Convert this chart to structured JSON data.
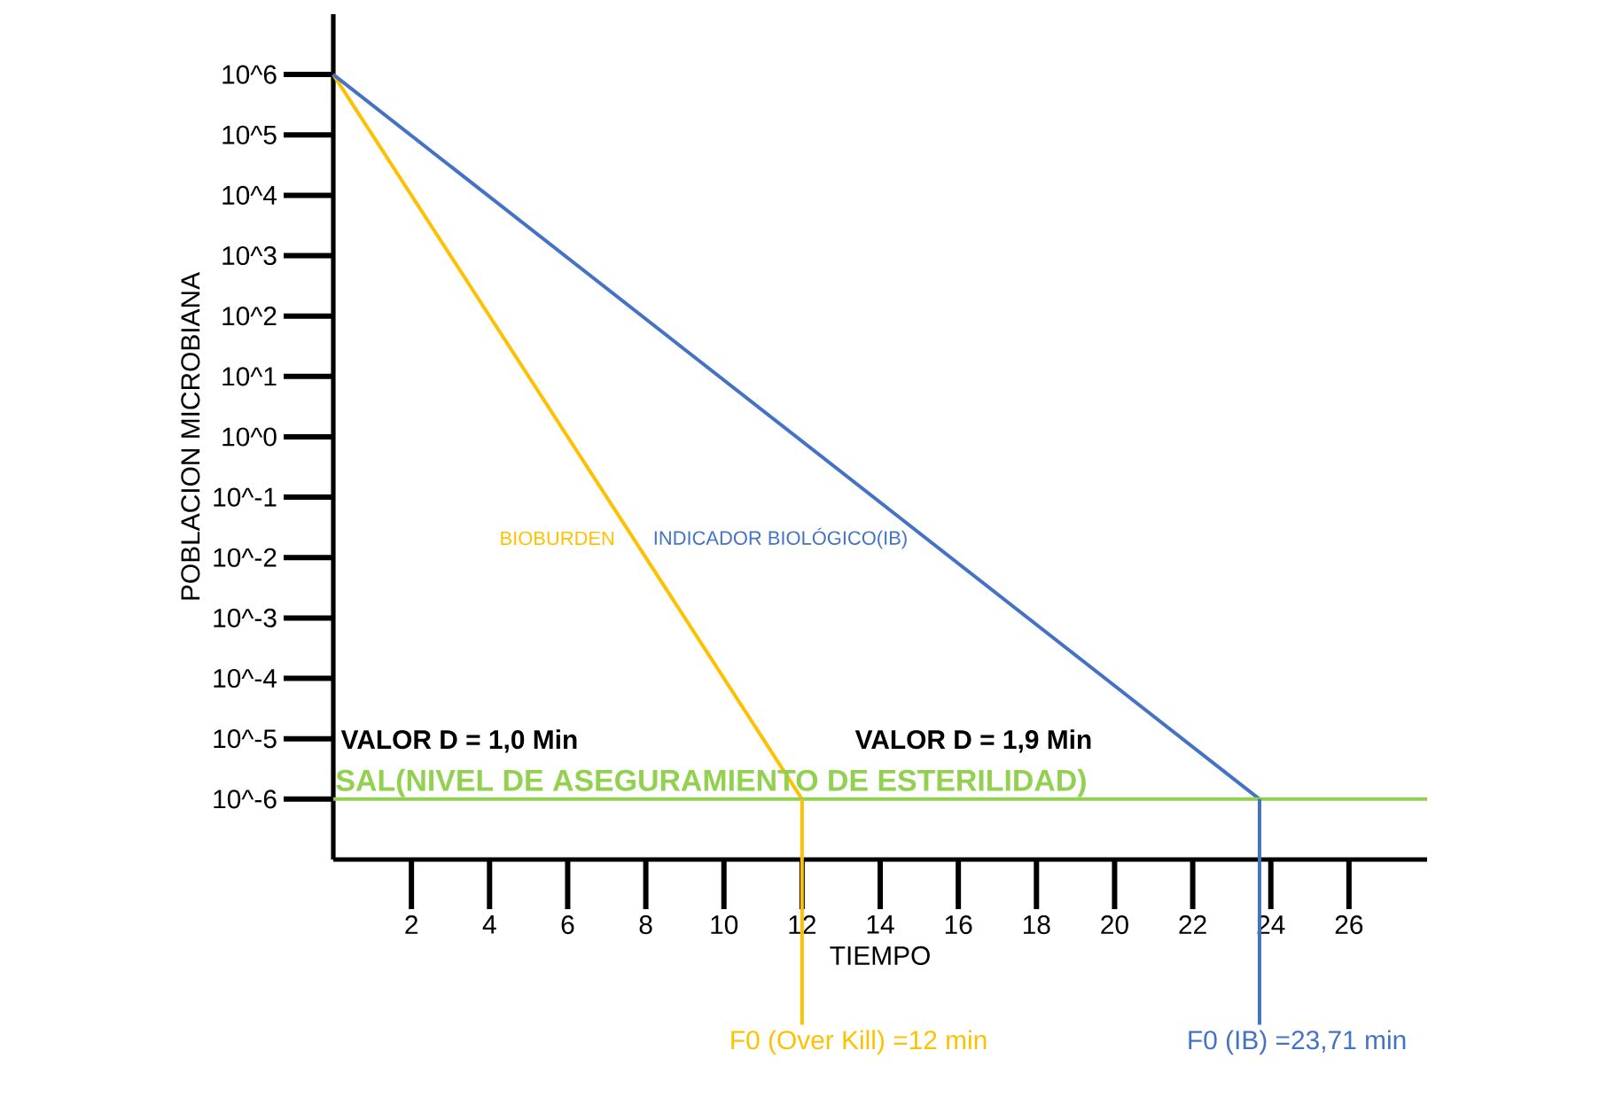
{
  "chart_data": {
    "type": "line",
    "xlabel": "TIEMPO",
    "ylabel": "POBLACION MICROBIANA",
    "log": "y",
    "marker": "none",
    "line_style": "solid",
    "xlim": [
      0,
      28
    ],
    "xticks": [
      2,
      4,
      6,
      8,
      10,
      12,
      14,
      16,
      18,
      20,
      22,
      24,
      26
    ],
    "ylim": [
      1e-07,
      10000000.0
    ],
    "yticks": [
      {
        "value": 1000000.0,
        "label": "10^6"
      },
      {
        "value": 100000.0,
        "label": "10^5"
      },
      {
        "value": 10000.0,
        "label": "10^4"
      },
      {
        "value": 1000.0,
        "label": "10^3"
      },
      {
        "value": 100.0,
        "label": "10^2"
      },
      {
        "value": 10.0,
        "label": "10^1"
      },
      {
        "value": 1,
        "label": "10^0"
      },
      {
        "value": 0.1,
        "label": "10^-1"
      },
      {
        "value": 0.01,
        "label": "10^-2"
      },
      {
        "value": 0.001,
        "label": "10^-3"
      },
      {
        "value": 0.0001,
        "label": "10^-4"
      },
      {
        "value": 1e-05,
        "label": "10^-5"
      },
      {
        "value": 1e-06,
        "label": "10^-6"
      }
    ],
    "series": [
      {
        "name": "BIOBURDEN",
        "color": "#ffc000",
        "x": [
          0,
          12
        ],
        "values": [
          1000000.0,
          1e-06
        ]
      },
      {
        "name": "INDICADOR BIOLÓGICO(IB)",
        "color": "#4472c4",
        "x": [
          0,
          23.71
        ],
        "values": [
          1000000.0,
          1e-06
        ]
      }
    ],
    "ref_lines": [
      {
        "axis": "y",
        "value": 1e-06,
        "label": "SAL(NIVEL DE ASEGURAMIENTO DE ESTERILIDAD)",
        "color": "#92d050"
      },
      {
        "axis": "x",
        "value": 12,
        "label": "F0 (Over Kill) =12 min",
        "color": "#ffc000"
      },
      {
        "axis": "x",
        "value": 23.71,
        "label": "F0 (IB) =23,71 min",
        "color": "#4472c4"
      }
    ],
    "annotations": [
      "VALOR D = 1,0 Min",
      "VALOR D = 1,9 Min"
    ]
  }
}
